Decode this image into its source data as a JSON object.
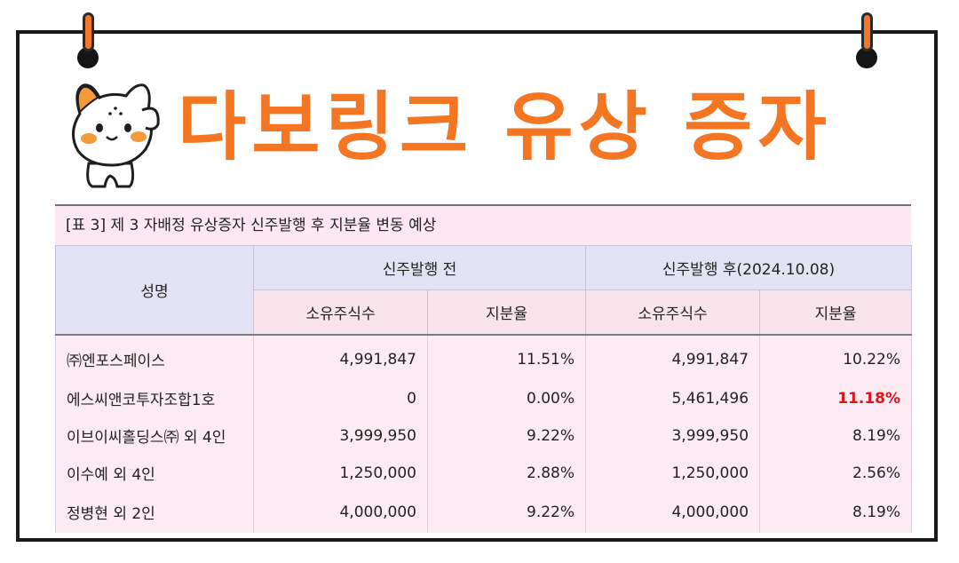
{
  "title": "다보링크 유상 증자",
  "caption": "[표 3] 제 3 자배정 유상증자 신주발행 후 지분율 변동 예상",
  "table": {
    "name_header": "성명",
    "before_header": "신주발행 전",
    "after_header": "신주발행 후(2024.10.08)",
    "sub_headers": [
      "소유주식수",
      "지분율",
      "소유주식수",
      "지분율"
    ],
    "rows": [
      {
        "name": "㈜엔포스페이스",
        "before_shares": "4,991,847",
        "before_ratio": "11.51%",
        "after_shares": "4,991,847",
        "after_ratio": "10.22%"
      },
      {
        "name": "에스씨앤코투자조합1호",
        "before_shares": "0",
        "before_ratio": "0.00%",
        "after_shares": "5,461,496",
        "after_ratio": "11.18%"
      },
      {
        "name": "이브이씨홀딩스㈜ 외 4인",
        "before_shares": "3,999,950",
        "before_ratio": "9.22%",
        "after_shares": "3,999,950",
        "after_ratio": "8.19%"
      },
      {
        "name": "이수예 외 4인",
        "before_shares": "1,250,000",
        "before_ratio": "2.88%",
        "after_shares": "1,250,000",
        "after_ratio": "2.56%"
      },
      {
        "name": "정병현 외 2인",
        "before_shares": "4,000,000",
        "before_ratio": "9.22%",
        "after_shares": "4,000,000",
        "after_ratio": "8.19%"
      }
    ]
  },
  "colors": {
    "accent": "#f47623",
    "highlight": "#e0131c",
    "header_bg": "#e4e3f5",
    "subheader_bg": "#f8e4ea",
    "row_bg": "#fdebf4"
  },
  "icons": [
    "cat-mascot-icon",
    "pin-icon"
  ]
}
